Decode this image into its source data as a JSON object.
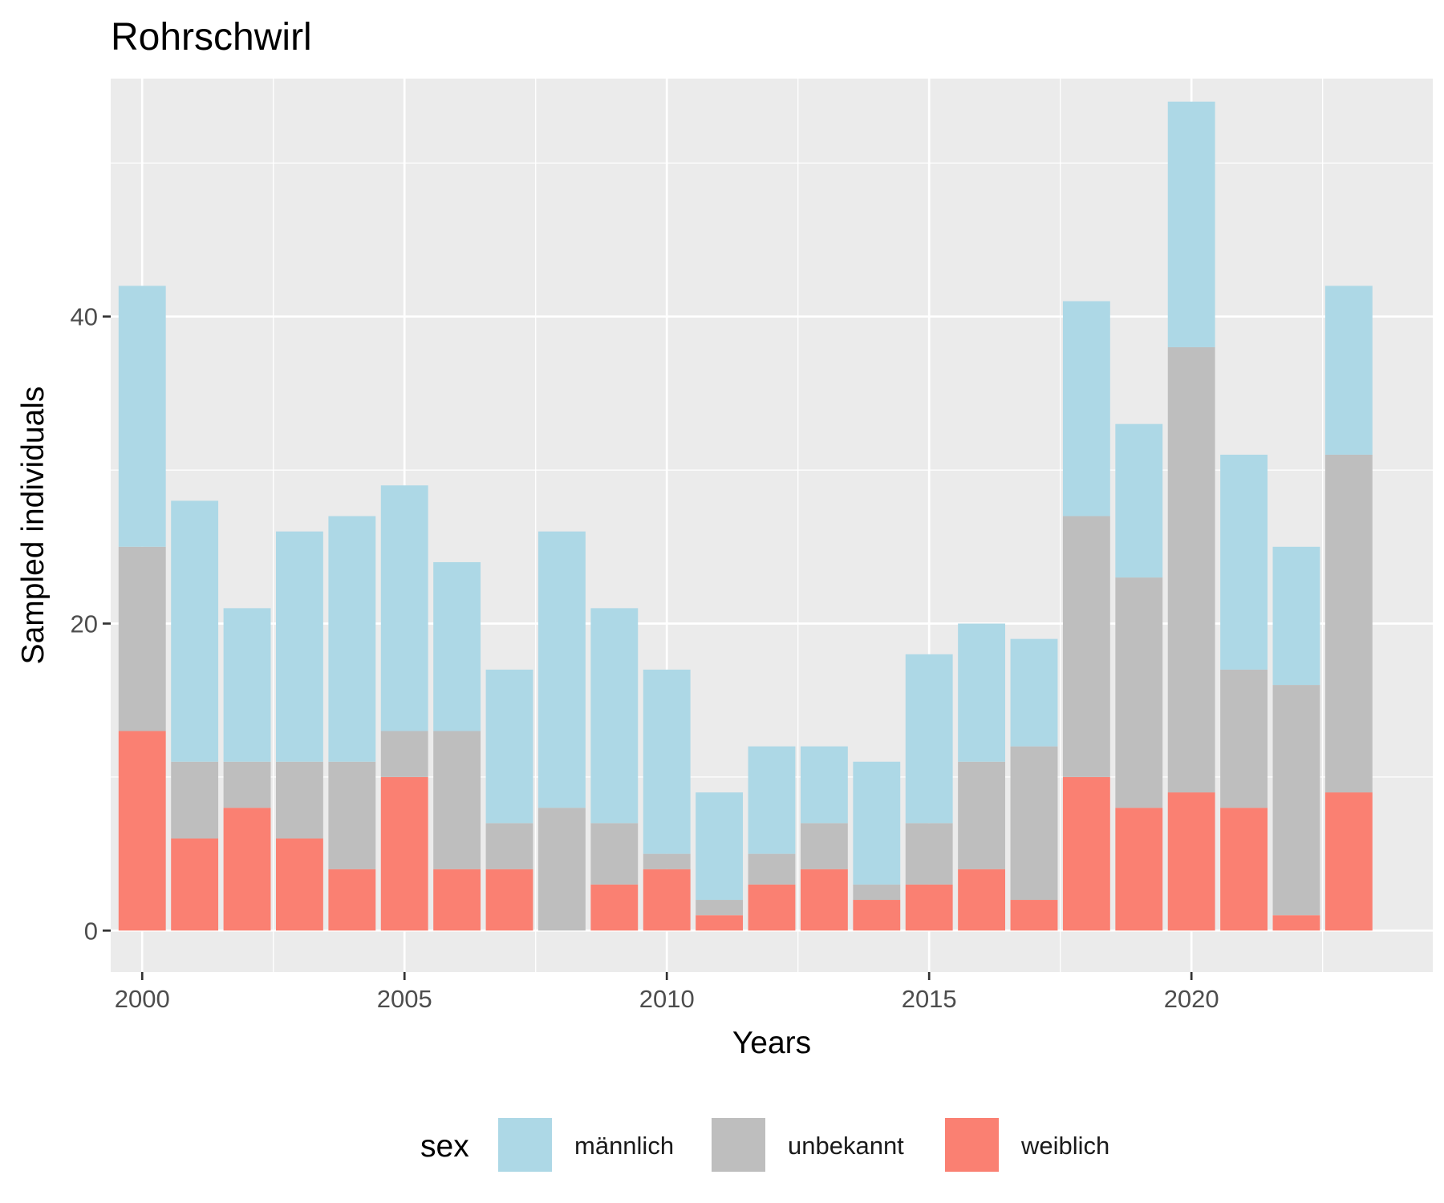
{
  "chart_data": {
    "type": "bar",
    "stacked": true,
    "title": "Rohrschwirl",
    "xlabel": "Years",
    "ylabel": "Sampled individuals",
    "x": [
      2000,
      2001,
      2002,
      2003,
      2004,
      2005,
      2006,
      2007,
      2008,
      2009,
      2010,
      2011,
      2012,
      2013,
      2014,
      2015,
      2016,
      2017,
      2018,
      2019,
      2020,
      2021,
      2022,
      2023
    ],
    "x_ticks": [
      "2000",
      "2005",
      "2010",
      "2015",
      "2020"
    ],
    "y_ticks": [
      "0",
      "20",
      "40"
    ],
    "xlim": [
      1999.4,
      2024.6
    ],
    "ylim": [
      -2.7,
      55.5
    ],
    "grid": true,
    "legend": {
      "title": "sex",
      "position": "bottom"
    },
    "series": [
      {
        "name": "weiblich",
        "color": "#FA8072",
        "values": [
          13,
          6,
          8,
          6,
          4,
          10,
          4,
          4,
          0,
          3,
          4,
          1,
          3,
          4,
          2,
          3,
          4,
          2,
          10,
          8,
          9,
          8,
          1,
          9
        ]
      },
      {
        "name": "unbekannt",
        "color": "#BEBEBE",
        "values": [
          12,
          5,
          3,
          5,
          7,
          3,
          9,
          3,
          8,
          4,
          1,
          1,
          2,
          3,
          1,
          4,
          7,
          10,
          17,
          15,
          29,
          9,
          15,
          22
        ]
      },
      {
        "name": "männlich",
        "color": "#ADD8E6",
        "values": [
          17,
          17,
          10,
          15,
          16,
          16,
          11,
          10,
          18,
          14,
          12,
          7,
          7,
          5,
          8,
          11,
          9,
          7,
          14,
          10,
          16,
          14,
          9,
          11
        ]
      }
    ],
    "legend_order": [
      "männlich",
      "unbekannt",
      "weiblich"
    ]
  }
}
